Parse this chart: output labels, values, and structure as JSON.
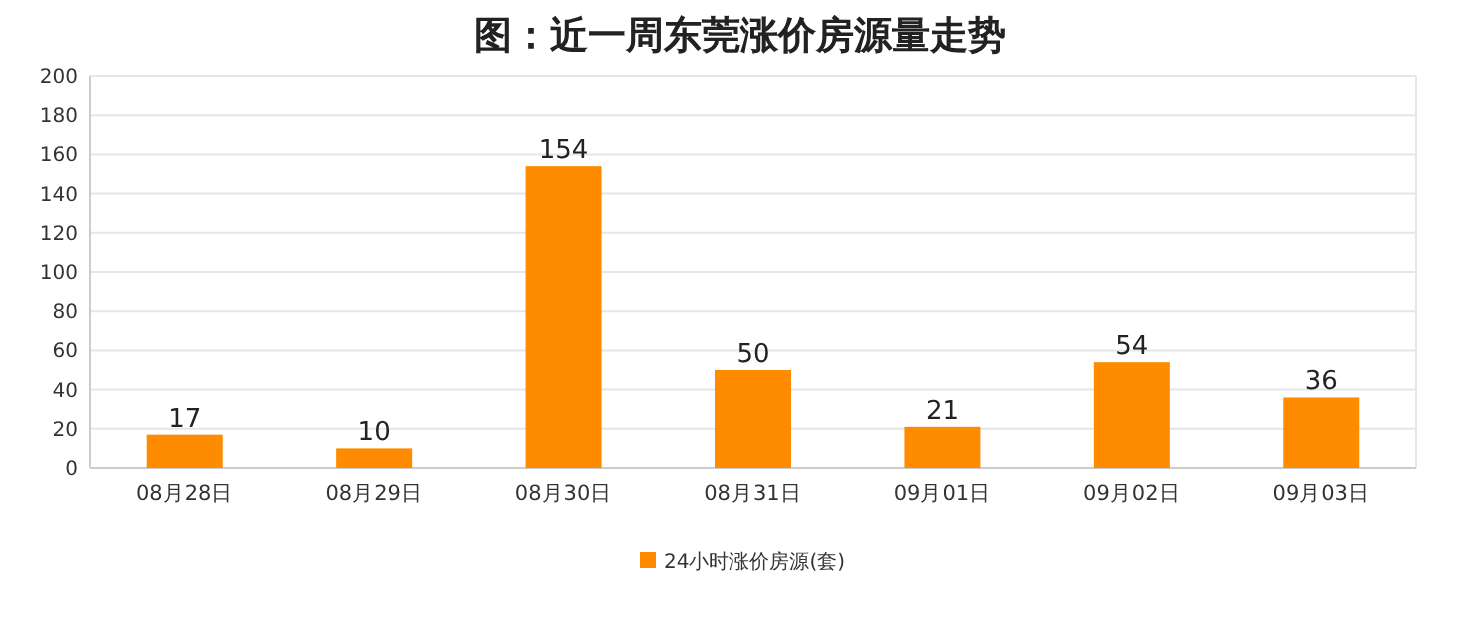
{
  "chart_data": {
    "type": "bar",
    "title": "图：近一周东莞涨价房源量走势",
    "categories": [
      "08月28日",
      "08月29日",
      "08月30日",
      "08月31日",
      "09月01日",
      "09月02日",
      "09月03日"
    ],
    "series": [
      {
        "name": "24小时涨价房源(套)",
        "color": "#ff8c00",
        "values": [
          17,
          10,
          154,
          50,
          21,
          54,
          36
        ]
      }
    ],
    "ylim": [
      0,
      200
    ],
    "yticks": [
      0,
      20,
      40,
      60,
      80,
      100,
      120,
      140,
      160,
      180,
      200
    ],
    "grid": "y",
    "data_labels": true,
    "legend": "bottom"
  }
}
